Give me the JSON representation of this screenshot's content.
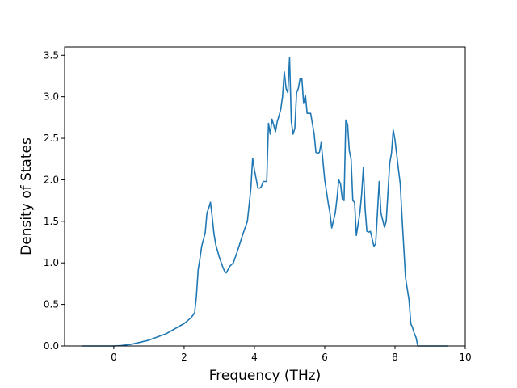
{
  "chart_data": {
    "type": "line",
    "title": "",
    "xlabel": "Frequency (THz)",
    "ylabel": "Density of States",
    "xlim": [
      -1.4,
      10.0
    ],
    "ylim": [
      0,
      3.6
    ],
    "xticks": [
      0,
      2,
      4,
      6,
      8,
      10
    ],
    "yticks": [
      0.0,
      0.5,
      1.0,
      1.5,
      2.0,
      2.5,
      3.0,
      3.5
    ],
    "xtick_labels": [
      "0",
      "2",
      "4",
      "6",
      "8",
      "10"
    ],
    "ytick_labels": [
      "0.0",
      "0.5",
      "1.0",
      "1.5",
      "2.0",
      "2.5",
      "3.0",
      "3.5"
    ],
    "grid": false,
    "line_color": "#1f77b4",
    "series": [
      {
        "x": [
          -0.9,
          0.0,
          0.2,
          0.5,
          1.0,
          1.5,
          2.0,
          2.2,
          2.3,
          2.35,
          2.4,
          2.45,
          2.5,
          2.6,
          2.65,
          2.7,
          2.75,
          2.8,
          2.85,
          2.9,
          3.0,
          3.1,
          3.15,
          3.2,
          3.3,
          3.4,
          3.5,
          3.6,
          3.7,
          3.8,
          3.85,
          3.9,
          3.95,
          4.0,
          4.1,
          4.15,
          4.2,
          4.25,
          4.3,
          4.35,
          4.4,
          4.45,
          4.5,
          4.6,
          4.65,
          4.7,
          4.75,
          4.8,
          4.85,
          4.9,
          4.95,
          5.0,
          5.05,
          5.1,
          5.15,
          5.2,
          5.25,
          5.3,
          5.35,
          5.4,
          5.45,
          5.5,
          5.6,
          5.7,
          5.75,
          5.8,
          5.85,
          5.9,
          6.0,
          6.1,
          6.15,
          6.2,
          6.3,
          6.35,
          6.4,
          6.45,
          6.5,
          6.55,
          6.6,
          6.65,
          6.7,
          6.75,
          6.8,
          6.85,
          6.9,
          7.0,
          7.05,
          7.1,
          7.15,
          7.2,
          7.25,
          7.3,
          7.4,
          7.45,
          7.5,
          7.55,
          7.6,
          7.7,
          7.75,
          7.8,
          7.85,
          7.9,
          7.95,
          8.0,
          8.05,
          8.1,
          8.15,
          8.2,
          8.3,
          8.4,
          8.45,
          8.5,
          8.55,
          8.6,
          8.65,
          8.7,
          9.5
        ],
        "y": [
          0.0,
          0.0,
          0.005,
          0.02,
          0.07,
          0.15,
          0.27,
          0.34,
          0.4,
          0.6,
          0.92,
          1.05,
          1.2,
          1.36,
          1.6,
          1.66,
          1.73,
          1.55,
          1.35,
          1.22,
          1.07,
          0.95,
          0.9,
          0.88,
          0.96,
          1.0,
          1.12,
          1.25,
          1.38,
          1.5,
          1.7,
          1.9,
          2.26,
          2.12,
          1.9,
          1.9,
          1.92,
          1.98,
          1.98,
          1.98,
          2.68,
          2.55,
          2.73,
          2.58,
          2.7,
          2.77,
          2.85,
          3.0,
          3.3,
          3.1,
          3.05,
          3.47,
          2.7,
          2.55,
          2.62,
          3.05,
          3.1,
          3.22,
          3.22,
          2.92,
          3.02,
          2.8,
          2.8,
          2.55,
          2.33,
          2.32,
          2.33,
          2.45,
          2.0,
          1.72,
          1.6,
          1.42,
          1.6,
          1.78,
          2.0,
          1.95,
          1.77,
          1.75,
          2.72,
          2.67,
          2.35,
          2.25,
          1.75,
          1.73,
          1.33,
          1.6,
          1.82,
          2.15,
          1.65,
          1.38,
          1.37,
          1.38,
          1.2,
          1.23,
          1.6,
          1.98,
          1.6,
          1.43,
          1.5,
          1.85,
          2.2,
          2.32,
          2.6,
          2.48,
          2.3,
          2.12,
          1.95,
          1.55,
          0.82,
          0.55,
          0.27,
          0.22,
          0.15,
          0.1,
          0.0,
          0.0,
          0.0
        ]
      }
    ]
  }
}
